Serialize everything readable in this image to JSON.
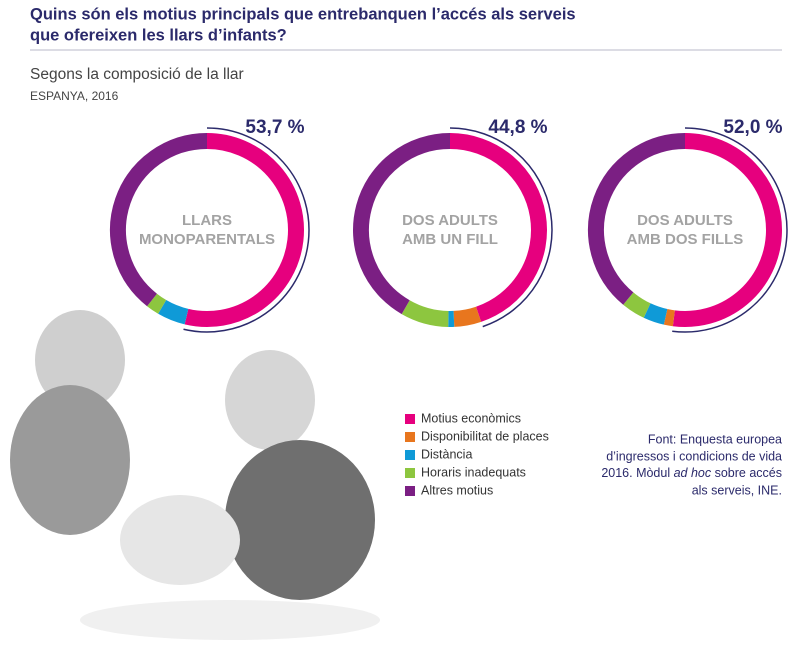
{
  "header": {
    "title": [
      "Quins són els motius principals que entrebanquen l’accés als serveis",
      "que ofereixen les llars d’infants?"
    ],
    "subtitle": "Segons la composició de la llar",
    "region": "ESPANYA, 2016"
  },
  "source": [
    "Font: Enquesta europea",
    "d’ingressos i condicions de vida",
    "2016. Mòdul ",
    "ad hoc",
    " sobre accés",
    "als serveis, INE."
  ],
  "chart_data": [
    {
      "type": "donut",
      "label": [
        "LLARS",
        "MONOPARENTALS"
      ],
      "categories": [
        "Motius econòmics",
        "Disponibilitat de places",
        "Distància",
        "Horaris inadequats",
        "Altres motius"
      ],
      "colors": [
        "#e6007e",
        "#e8761e",
        "#0f9ad7",
        "#8dc63f",
        "#7b1f83"
      ],
      "values": [
        53.7,
        0,
        4.7,
        2.2,
        39.4
      ],
      "value_labels": [
        "53,7 %",
        null,
        null,
        null,
        null
      ]
    },
    {
      "type": "donut",
      "label": [
        "DOS ADULTS",
        "AMB UN FILL"
      ],
      "categories": [
        "Motius econòmics",
        "Disponibilitat de places",
        "Distància",
        "Horaris inadequats",
        "Altres motius"
      ],
      "colors": [
        "#e6007e",
        "#e8761e",
        "#0f9ad7",
        "#8dc63f",
        "#7b1f83"
      ],
      "values": [
        44.8,
        4.5,
        1.0,
        8.0,
        41.7
      ],
      "value_labels": [
        "44,8 %",
        null,
        null,
        null,
        null
      ]
    },
    {
      "type": "donut",
      "label": [
        "DOS ADULTS",
        "AMB DOS FILLS"
      ],
      "categories": [
        "Motius econòmics",
        "Disponibilitat de places",
        "Distància",
        "Horaris inadequats",
        "Altres motius"
      ],
      "colors": [
        "#e6007e",
        "#e8761e",
        "#0f9ad7",
        "#8dc63f",
        "#7b1f83"
      ],
      "values": [
        52.0,
        1.5,
        3.5,
        4.0,
        39.0
      ],
      "value_labels": [
        "52,0 %",
        null,
        null,
        null,
        null
      ]
    }
  ]
}
